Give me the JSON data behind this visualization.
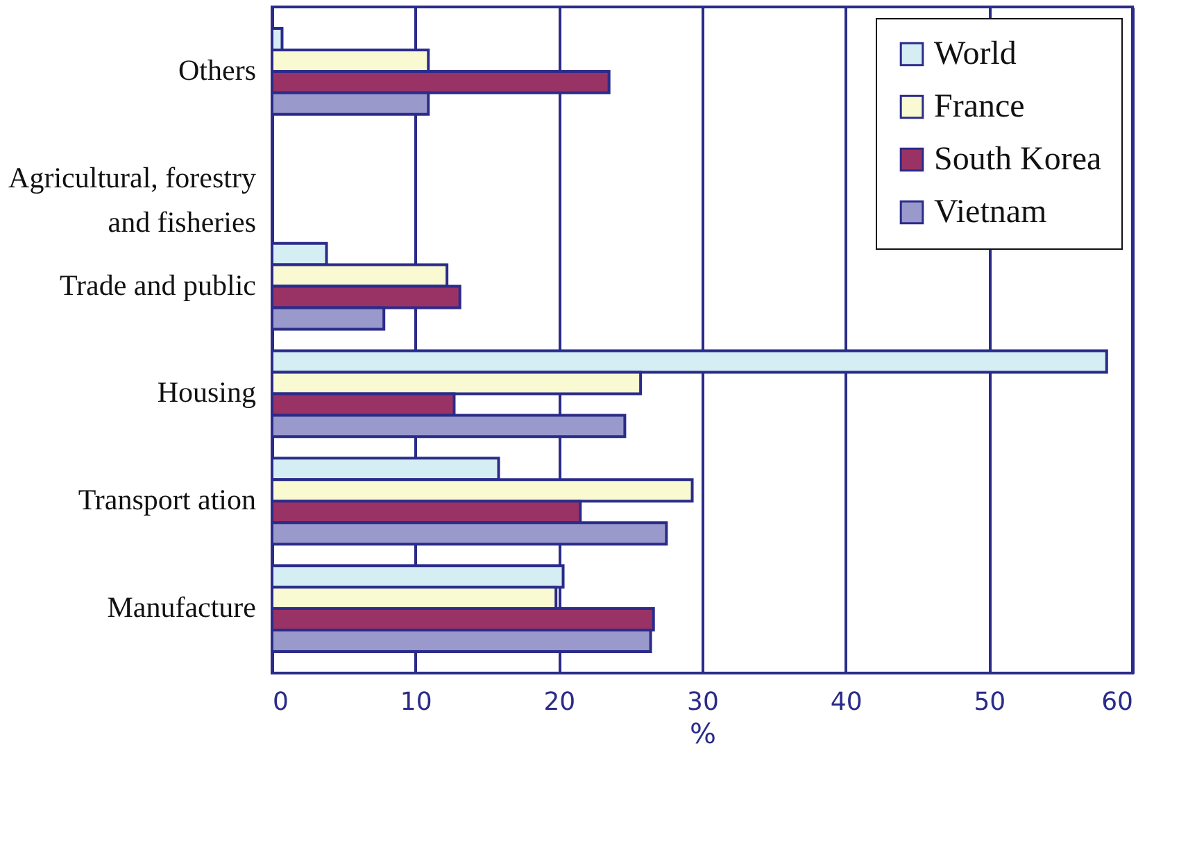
{
  "chart_data": {
    "type": "bar",
    "orientation": "horizontal",
    "xlabel": "%",
    "categories": [
      "Others",
      "Agricultural, forestry and fisheries",
      "Trade and public",
      "Housing",
      "Transport ation",
      "Manufacture"
    ],
    "series": [
      {
        "name": "World",
        "color": "#d4eef4",
        "values": [
          0.7,
          null,
          3.8,
          58.2,
          15.8,
          20.3
        ]
      },
      {
        "name": "France",
        "color": "#fafad2",
        "values": [
          10.9,
          null,
          12.2,
          25.7,
          29.3,
          19.8
        ]
      },
      {
        "name": "South Korea",
        "color": "#993366",
        "values": [
          23.5,
          null,
          13.1,
          12.7,
          21.5,
          26.6
        ]
      },
      {
        "name": "Vietnam",
        "color": "#9999cc",
        "values": [
          10.9,
          null,
          7.8,
          24.6,
          27.5,
          26.4
        ]
      }
    ],
    "xlim": [
      0,
      60
    ],
    "xticks": [
      0,
      10,
      20,
      30,
      40,
      50,
      60
    ],
    "grid": "x",
    "legend": "top right"
  }
}
